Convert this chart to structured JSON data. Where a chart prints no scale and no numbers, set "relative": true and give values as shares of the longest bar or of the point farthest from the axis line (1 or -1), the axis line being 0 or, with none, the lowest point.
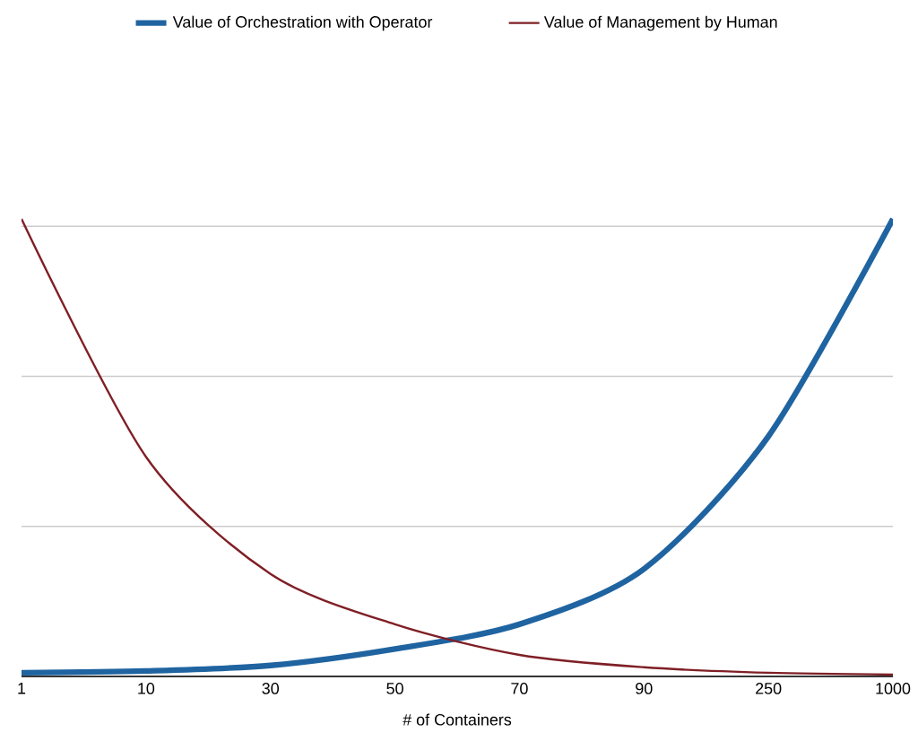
{
  "chart_data": {
    "type": "line",
    "relative": true,
    "xlabel": "# of Containers",
    "categories": [
      "1",
      "10",
      "30",
      "50",
      "70",
      "90",
      "250",
      "1000"
    ],
    "series": [
      {
        "name": "Value of Orchestration with Operator",
        "color": "#1f64a0",
        "values": [
          0.008,
          0.012,
          0.024,
          0.06,
          0.114,
          0.235,
          0.525,
          1.0
        ]
      },
      {
        "name": "Value of Management by Human",
        "color": "#7f1f25",
        "values": [
          1.0,
          0.48,
          0.224,
          0.114,
          0.047,
          0.02,
          0.008,
          0.004
        ]
      }
    ],
    "grid": "y",
    "legend": "top",
    "marker": "none",
    "line_style": "solid"
  }
}
